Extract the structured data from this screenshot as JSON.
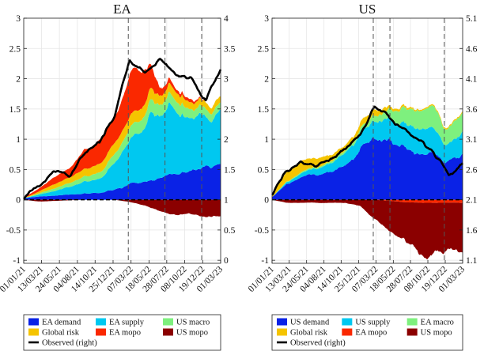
{
  "chart_data": [
    {
      "type": "area",
      "title": "EA",
      "stacking": "positive and negative stacked areas with observed line on right axis",
      "x_type": "date",
      "x": [
        "2021-01-01",
        "2021-03-01",
        "2021-05-01",
        "2021-07-01",
        "2021-09-01",
        "2021-11-01",
        "2022-01-01",
        "2022-03-01",
        "2022-05-01",
        "2022-07-01",
        "2022-09-01",
        "2022-11-01",
        "2023-01-01",
        "2023-03-01"
      ],
      "xtick_labels": [
        "01/01/21",
        "13/03/21",
        "24/05/21",
        "04/08/21",
        "14/10/21",
        "25/12/21",
        "07/03/22",
        "18/05/22",
        "28/07/22",
        "08/10/22",
        "19/12/22",
        "01/03/23"
      ],
      "ylim_left": [
        -1.05,
        3
      ],
      "yticks_left": [
        "-1",
        "-0.5",
        "0",
        "0.5",
        "1",
        "1.5",
        "2",
        "2.5",
        "3"
      ],
      "ylim_right": [
        -0.05,
        4
      ],
      "yticks_right": [
        "0",
        "0.5",
        "1",
        "1.5",
        "2",
        "2.5",
        "3",
        "3.5",
        "4"
      ],
      "vlines": [
        "2022-02-24",
        "2022-07-21",
        "2022-12-15"
      ],
      "grid": true,
      "series": [
        {
          "name": "EA demand",
          "color": "#0a22e6",
          "values": [
            0.03,
            0.05,
            0.06,
            0.08,
            0.1,
            0.12,
            0.18,
            0.26,
            0.3,
            0.36,
            0.42,
            0.48,
            0.52,
            0.56
          ]
        },
        {
          "name": "EA supply",
          "color": "#00c8f0",
          "values": [
            0.0,
            0.03,
            0.07,
            0.12,
            0.18,
            0.22,
            0.4,
            0.7,
            0.95,
            1.1,
            1.05,
            0.95,
            0.8,
            0.85
          ]
        },
        {
          "name": "US macro",
          "color": "#7ef07e",
          "values": [
            0.0,
            0.02,
            0.04,
            0.06,
            0.08,
            0.1,
            0.14,
            0.18,
            0.2,
            0.2,
            0.18,
            0.16,
            0.12,
            0.12
          ]
        },
        {
          "name": "Global risk",
          "color": "#f5c400",
          "values": [
            0.0,
            0.03,
            0.07,
            0.1,
            0.12,
            0.14,
            0.18,
            0.2,
            0.18,
            0.16,
            0.14,
            0.12,
            0.1,
            0.1
          ]
        },
        {
          "name": "EA mopo",
          "color": "#fa2800",
          "values": [
            0.01,
            0.05,
            0.12,
            0.15,
            0.3,
            0.4,
            0.42,
            0.68,
            0.58,
            0.12,
            0.05,
            0.05,
            0.0,
            0.0
          ]
        },
        {
          "name": "US mopo",
          "color": "#8b0000",
          "values": [
            0.0,
            -0.03,
            -0.02,
            -0.01,
            0.0,
            0.0,
            0.0,
            -0.04,
            -0.1,
            -0.18,
            -0.25,
            -0.25,
            -0.3,
            -0.3
          ]
        },
        {
          "name": "Observed (right)",
          "axis": "right",
          "color": "#000000",
          "values": [
            1.05,
            1.2,
            1.45,
            1.4,
            1.8,
            1.95,
            2.4,
            3.35,
            3.1,
            3.3,
            3.1,
            3.0,
            2.6,
            3.15
          ]
        }
      ]
    },
    {
      "type": "area",
      "title": "US",
      "stacking": "positive and negative stacked areas with observed line on right axis",
      "x_type": "date",
      "x": [
        "2021-01-01",
        "2021-03-01",
        "2021-05-01",
        "2021-07-01",
        "2021-09-01",
        "2021-11-01",
        "2022-01-01",
        "2022-03-01",
        "2022-05-01",
        "2022-07-01",
        "2022-09-01",
        "2022-11-01",
        "2023-01-01",
        "2023-03-01"
      ],
      "xtick_labels": [
        "01/01/21",
        "13/03/21",
        "24/05/21",
        "04/08/21",
        "14/10/21",
        "25/12/21",
        "07/03/22",
        "18/05/22",
        "28/07/22",
        "08/10/22",
        "19/12/22",
        "01/03/23"
      ],
      "ylim_left": [
        -1.05,
        3
      ],
      "yticks_left": [
        "-1",
        "-0.5",
        "0",
        "0.5",
        "1",
        "1.5",
        "2",
        "2.5",
        "3"
      ],
      "ylim_right": [
        1.05,
        5.1
      ],
      "yticks_right": [
        "1.1",
        "1.6",
        "2.1",
        "2.6",
        "3.1",
        "3.6",
        "4.1",
        "4.6",
        "5.1"
      ],
      "vlines": [
        "2022-02-24",
        "2022-05-04",
        "2022-12-15"
      ],
      "grid": true,
      "series": [
        {
          "name": "US demand",
          "color": "#0a22e6",
          "values": [
            0.05,
            0.25,
            0.35,
            0.4,
            0.5,
            0.6,
            0.9,
            0.95,
            1.0,
            0.85,
            0.75,
            0.7,
            0.6,
            0.72
          ]
        },
        {
          "name": "US supply",
          "color": "#00c8f0",
          "values": [
            0.0,
            0.03,
            0.06,
            0.1,
            0.15,
            0.2,
            0.25,
            0.3,
            0.35,
            0.4,
            0.4,
            0.4,
            0.3,
            0.35
          ]
        },
        {
          "name": "EA macro",
          "color": "#7ef07e",
          "values": [
            0.0,
            0.01,
            0.02,
            0.02,
            0.03,
            0.04,
            0.06,
            0.1,
            0.14,
            0.25,
            0.3,
            0.35,
            0.25,
            0.3
          ]
        },
        {
          "name": "Global risk",
          "color": "#f5c400",
          "values": [
            0.05,
            0.15,
            0.2,
            0.15,
            0.1,
            0.08,
            0.1,
            0.12,
            0.05,
            0.03,
            0.02,
            0.02,
            0.02,
            0.02
          ]
        },
        {
          "name": "EA mopo",
          "color": "#fa2800",
          "values": [
            0.0,
            0.0,
            0.0,
            0.0,
            0.0,
            0.0,
            0.0,
            0.0,
            -0.02,
            -0.04,
            -0.05,
            -0.05,
            -0.05,
            -0.05
          ]
        },
        {
          "name": "US mopo",
          "color": "#8b0000",
          "values": [
            0.0,
            -0.05,
            -0.05,
            -0.05,
            -0.05,
            -0.05,
            -0.1,
            -0.3,
            -0.45,
            -0.6,
            -0.85,
            -0.9,
            -0.8,
            -0.85
          ]
        },
        {
          "name": "Observed (right)",
          "axis": "right",
          "color": "#000000",
          "values": [
            2.2,
            2.55,
            2.7,
            2.65,
            2.8,
            2.95,
            3.2,
            3.65,
            3.45,
            3.3,
            3.1,
            2.9,
            2.5,
            2.7
          ]
        }
      ]
    }
  ]
}
